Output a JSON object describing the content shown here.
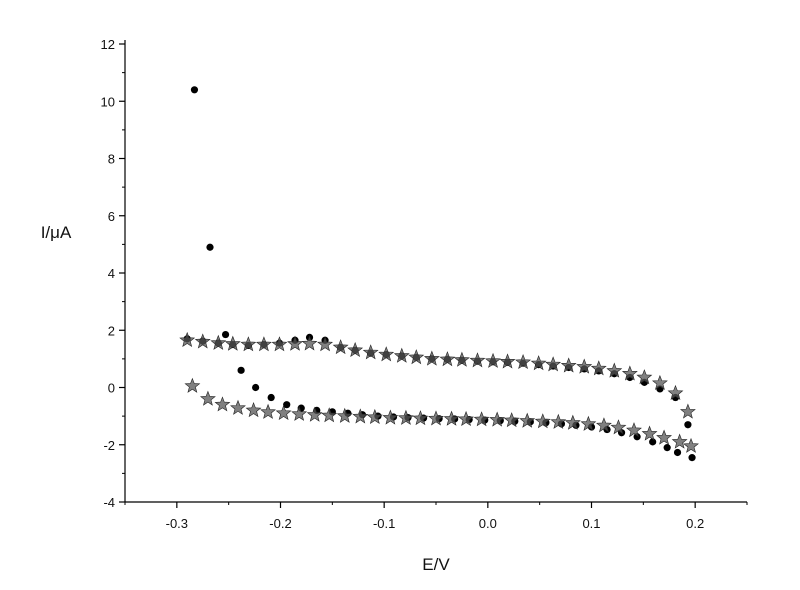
{
  "chart_data": {
    "type": "scatter",
    "title": "",
    "xlabel": "E/V",
    "ylabel": "I/μA",
    "xlim": [
      -0.35,
      0.25
    ],
    "ylim": [
      -4,
      12
    ],
    "x_ticks": [
      -0.3,
      -0.2,
      -0.1,
      0.0,
      0.1,
      0.2
    ],
    "x_tick_labels": [
      "-0.3",
      "-0.2",
      "-0.1",
      "0.0",
      "0.1",
      "0.2"
    ],
    "y_ticks": [
      -4,
      -2,
      0,
      2,
      4,
      6,
      8,
      10,
      12
    ],
    "y_tick_labels": [
      "-4",
      "-2",
      "0",
      "2",
      "4",
      "6",
      "8",
      "10",
      "12"
    ],
    "grid": false,
    "legend": "none",
    "series": [
      {
        "marker": "circle",
        "color": "#000000",
        "points": [
          [
            -0.283,
            10.4
          ],
          [
            -0.268,
            4.9
          ],
          [
            -0.253,
            1.85
          ],
          [
            -0.238,
            0.6
          ],
          [
            -0.224,
            0.0
          ],
          [
            -0.209,
            -0.35
          ],
          [
            -0.194,
            -0.6
          ],
          [
            -0.18,
            -0.72
          ],
          [
            -0.165,
            -0.8
          ],
          [
            -0.15,
            -0.85
          ],
          [
            -0.135,
            -0.9
          ],
          [
            -0.121,
            -0.95
          ],
          [
            -0.106,
            -1.0
          ],
          [
            -0.091,
            -1.03
          ],
          [
            -0.077,
            -1.05
          ],
          [
            -0.062,
            -1.07
          ],
          [
            -0.047,
            -1.09
          ],
          [
            -0.032,
            -1.1
          ],
          [
            -0.018,
            -1.12
          ],
          [
            -0.003,
            -1.14
          ],
          [
            0.012,
            -1.16
          ],
          [
            0.026,
            -1.18
          ],
          [
            0.041,
            -1.2
          ],
          [
            0.056,
            -1.23
          ],
          [
            0.071,
            -1.27
          ],
          [
            0.085,
            -1.32
          ],
          [
            0.1,
            -1.38
          ],
          [
            0.115,
            -1.47
          ],
          [
            0.129,
            -1.58
          ],
          [
            0.144,
            -1.72
          ],
          [
            0.159,
            -1.9
          ],
          [
            0.173,
            -2.1
          ],
          [
            0.183,
            -2.27
          ],
          [
            0.197,
            -2.45
          ],
          [
            -0.29,
            1.7
          ],
          [
            -0.275,
            1.62
          ],
          [
            -0.26,
            1.55
          ],
          [
            -0.246,
            1.5
          ],
          [
            -0.231,
            1.47
          ],
          [
            -0.216,
            1.5
          ],
          [
            -0.201,
            1.55
          ],
          [
            -0.186,
            1.65
          ],
          [
            -0.172,
            1.75
          ],
          [
            -0.157,
            1.65
          ],
          [
            -0.142,
            1.4
          ],
          [
            -0.128,
            1.3
          ],
          [
            -0.113,
            1.2
          ],
          [
            -0.098,
            1.15
          ],
          [
            -0.083,
            1.1
          ],
          [
            -0.069,
            1.05
          ],
          [
            -0.054,
            1.0
          ],
          [
            -0.039,
            0.98
          ],
          [
            -0.025,
            0.95
          ],
          [
            -0.01,
            0.92
          ],
          [
            0.005,
            0.9
          ],
          [
            0.019,
            0.88
          ],
          [
            0.034,
            0.85
          ],
          [
            0.049,
            0.8
          ],
          [
            0.063,
            0.75
          ],
          [
            0.078,
            0.7
          ],
          [
            0.093,
            0.65
          ],
          [
            0.107,
            0.58
          ],
          [
            0.122,
            0.48
          ],
          [
            0.137,
            0.35
          ],
          [
            0.151,
            0.18
          ],
          [
            0.166,
            -0.05
          ],
          [
            0.181,
            -0.35
          ],
          [
            0.193,
            -1.3
          ]
        ]
      },
      {
        "marker": "star",
        "color": "#555555",
        "points": [
          [
            -0.285,
            0.05
          ],
          [
            -0.27,
            -0.4
          ],
          [
            -0.256,
            -0.6
          ],
          [
            -0.241,
            -0.72
          ],
          [
            -0.226,
            -0.8
          ],
          [
            -0.212,
            -0.86
          ],
          [
            -0.197,
            -0.9
          ],
          [
            -0.182,
            -0.93
          ],
          [
            -0.167,
            -0.96
          ],
          [
            -0.153,
            -0.98
          ],
          [
            -0.138,
            -1.0
          ],
          [
            -0.123,
            -1.02
          ],
          [
            -0.109,
            -1.04
          ],
          [
            -0.094,
            -1.06
          ],
          [
            -0.079,
            -1.07
          ],
          [
            -0.065,
            -1.08
          ],
          [
            -0.05,
            -1.09
          ],
          [
            -0.035,
            -1.1
          ],
          [
            -0.021,
            -1.11
          ],
          [
            -0.006,
            -1.12
          ],
          [
            0.009,
            -1.13
          ],
          [
            0.023,
            -1.15
          ],
          [
            0.038,
            -1.17
          ],
          [
            0.053,
            -1.19
          ],
          [
            0.068,
            -1.21
          ],
          [
            0.082,
            -1.24
          ],
          [
            0.097,
            -1.28
          ],
          [
            0.112,
            -1.33
          ],
          [
            0.126,
            -1.4
          ],
          [
            0.141,
            -1.5
          ],
          [
            0.156,
            -1.62
          ],
          [
            0.17,
            -1.76
          ],
          [
            0.185,
            -1.9
          ],
          [
            0.196,
            -2.05
          ],
          [
            -0.29,
            1.65
          ],
          [
            -0.275,
            1.6
          ],
          [
            -0.26,
            1.55
          ],
          [
            -0.246,
            1.52
          ],
          [
            -0.231,
            1.5
          ],
          [
            -0.216,
            1.5
          ],
          [
            -0.201,
            1.5
          ],
          [
            -0.186,
            1.52
          ],
          [
            -0.172,
            1.53
          ],
          [
            -0.157,
            1.5
          ],
          [
            -0.142,
            1.4
          ],
          [
            -0.128,
            1.3
          ],
          [
            -0.113,
            1.22
          ],
          [
            -0.098,
            1.15
          ],
          [
            -0.083,
            1.1
          ],
          [
            -0.069,
            1.05
          ],
          [
            -0.054,
            1.0
          ],
          [
            -0.039,
            0.98
          ],
          [
            -0.025,
            0.96
          ],
          [
            -0.01,
            0.94
          ],
          [
            0.005,
            0.92
          ],
          [
            0.019,
            0.9
          ],
          [
            0.034,
            0.88
          ],
          [
            0.049,
            0.84
          ],
          [
            0.063,
            0.8
          ],
          [
            0.078,
            0.76
          ],
          [
            0.093,
            0.72
          ],
          [
            0.107,
            0.66
          ],
          [
            0.122,
            0.58
          ],
          [
            0.137,
            0.48
          ],
          [
            0.151,
            0.35
          ],
          [
            0.166,
            0.15
          ],
          [
            0.181,
            -0.2
          ],
          [
            0.193,
            -0.85
          ]
        ]
      }
    ]
  }
}
